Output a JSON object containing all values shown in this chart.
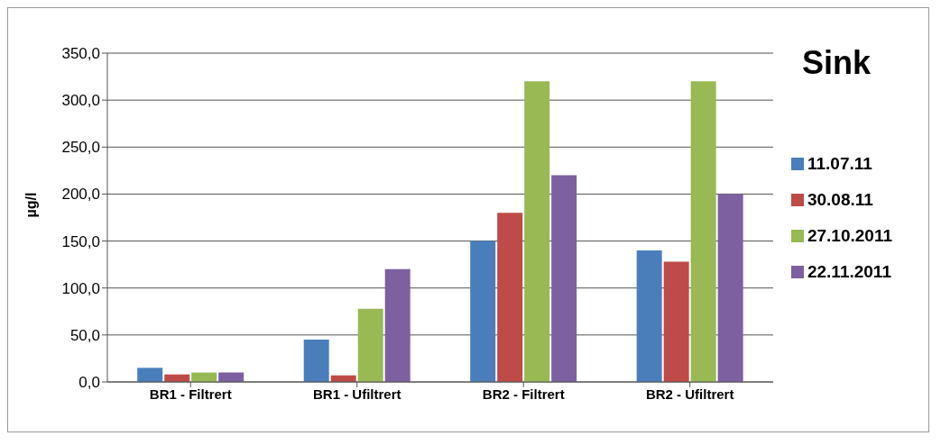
{
  "chart_data": {
    "type": "bar",
    "title": "Sink",
    "ylabel": "µg/l",
    "categories": [
      "BR1 - Filtrert",
      "BR1 - Ufiltrert",
      "BR2 - Filtrert",
      "BR2 - Ufiltrert"
    ],
    "series": [
      {
        "name": "11.07.11",
        "color": "#4a7ebb",
        "values": [
          15,
          45,
          150,
          140
        ]
      },
      {
        "name": "30.08.11",
        "color": "#be4b48",
        "values": [
          8,
          7,
          180,
          128
        ]
      },
      {
        "name": "27.10.2011",
        "color": "#98b954",
        "values": [
          10,
          78,
          320,
          320
        ]
      },
      {
        "name": "22.11.2011",
        "color": "#7d60a0",
        "values": [
          10,
          120,
          220,
          200
        ]
      }
    ],
    "ylim": [
      0,
      350
    ],
    "yticks": [
      {
        "value": 0,
        "label": "0,0"
      },
      {
        "value": 50,
        "label": "50,0"
      },
      {
        "value": 100,
        "label": "100,0"
      },
      {
        "value": 150,
        "label": "150,0"
      },
      {
        "value": 200,
        "label": "200,0"
      },
      {
        "value": 250,
        "label": "250,0"
      },
      {
        "value": 300,
        "label": "300,0"
      },
      {
        "value": 350,
        "label": "350,0"
      }
    ],
    "grid": "y",
    "legend": "right"
  }
}
